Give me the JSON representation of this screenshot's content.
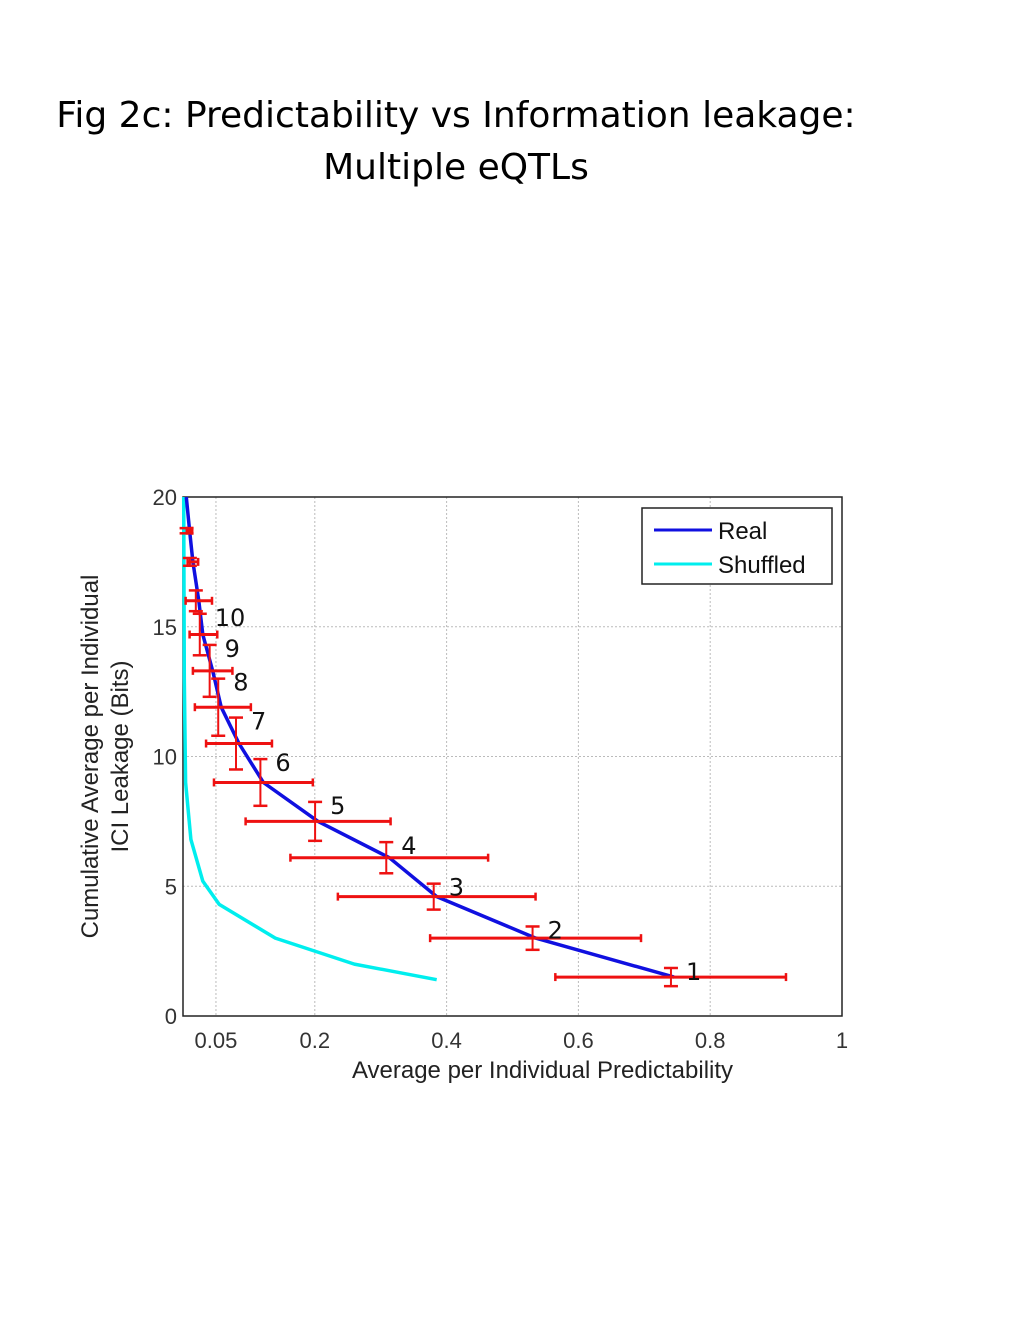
{
  "page": {
    "title_line1": "Fig 2c: Predictability vs Information leakage:",
    "title_line2": "Multiple eQTLs"
  },
  "chart_data": {
    "type": "line",
    "xlabel": "Average per Individual Predictability",
    "ylabel_line1": "Cumulative Average per Individual",
    "ylabel_line2": "ICI Leakage (Bits)",
    "xlim": [
      0,
      1
    ],
    "ylim": [
      0,
      20
    ],
    "x_ticks": [
      0.05,
      0.2,
      0.4,
      0.6,
      0.8,
      1
    ],
    "x_tick_labels": [
      "0.05",
      "0.2",
      "0.4",
      "0.6",
      "0.8",
      "1"
    ],
    "y_ticks": [
      0,
      5,
      10,
      15,
      20
    ],
    "y_tick_labels": [
      "0",
      "5",
      "10",
      "15",
      "20"
    ],
    "grid": true,
    "legend": "top-right",
    "series": [
      {
        "name": "Real",
        "color": "#1010e0",
        "points": [
          {
            "x": 0.745,
            "y": 1.5,
            "xerr_lo": 0.18,
            "xerr_hi": 0.17,
            "yerr": 0.35,
            "label": "1"
          },
          {
            "x": 0.535,
            "y": 3.0,
            "xerr_lo": 0.16,
            "xerr_hi": 0.16,
            "yerr": 0.45,
            "label": "2"
          },
          {
            "x": 0.385,
            "y": 4.6,
            "xerr_lo": 0.15,
            "xerr_hi": 0.15,
            "yerr": 0.5,
            "label": "3"
          },
          {
            "x": 0.313,
            "y": 6.1,
            "xerr_lo": 0.15,
            "xerr_hi": 0.15,
            "yerr": 0.6,
            "label": "4"
          },
          {
            "x": 0.205,
            "y": 7.5,
            "xerr_lo": 0.11,
            "xerr_hi": 0.11,
            "yerr": 0.75,
            "label": "5"
          },
          {
            "x": 0.122,
            "y": 9.0,
            "xerr_lo": 0.075,
            "xerr_hi": 0.075,
            "yerr": 0.9,
            "label": "6"
          },
          {
            "x": 0.085,
            "y": 10.5,
            "xerr_lo": 0.05,
            "xerr_hi": 0.05,
            "yerr": 1.0,
            "label": "7"
          },
          {
            "x": 0.058,
            "y": 11.9,
            "xerr_lo": 0.04,
            "xerr_hi": 0.045,
            "yerr": 1.1,
            "label": "8"
          },
          {
            "x": 0.045,
            "y": 13.3,
            "xerr_lo": 0.03,
            "xerr_hi": 0.03,
            "yerr": 1.0,
            "label": "9"
          },
          {
            "x": 0.03,
            "y": 14.7,
            "xerr_lo": 0.02,
            "xerr_hi": 0.022,
            "yerr": 0.8,
            "label": "10"
          },
          {
            "x": 0.024,
            "y": 16.0,
            "xerr_lo": 0.02,
            "xerr_hi": 0.02,
            "yerr": 0.4,
            "label": ""
          },
          {
            "x": 0.015,
            "y": 17.5,
            "xerr_lo": 0.008,
            "xerr_hi": 0.008,
            "yerr": 0.15,
            "label": ""
          },
          {
            "x": 0.01,
            "y": 18.7,
            "xerr_lo": 0.004,
            "xerr_hi": 0.004,
            "yerr": 0.1,
            "label": ""
          },
          {
            "x": 0.005,
            "y": 20.0,
            "xerr_lo": 0,
            "xerr_hi": 0,
            "yerr": 0,
            "label": ""
          }
        ]
      },
      {
        "name": "Shuffled",
        "color": "#00eeee",
        "points": [
          {
            "x": 0.385,
            "y": 1.4
          },
          {
            "x": 0.26,
            "y": 2.0
          },
          {
            "x": 0.14,
            "y": 3.0
          },
          {
            "x": 0.055,
            "y": 4.3
          },
          {
            "x": 0.03,
            "y": 5.2
          },
          {
            "x": 0.012,
            "y": 6.8
          },
          {
            "x": 0.004,
            "y": 9.0
          },
          {
            "x": 0.002,
            "y": 13.0
          },
          {
            "x": 0.001,
            "y": 20.0
          }
        ]
      }
    ],
    "errorbar_color": "#ee1111"
  }
}
